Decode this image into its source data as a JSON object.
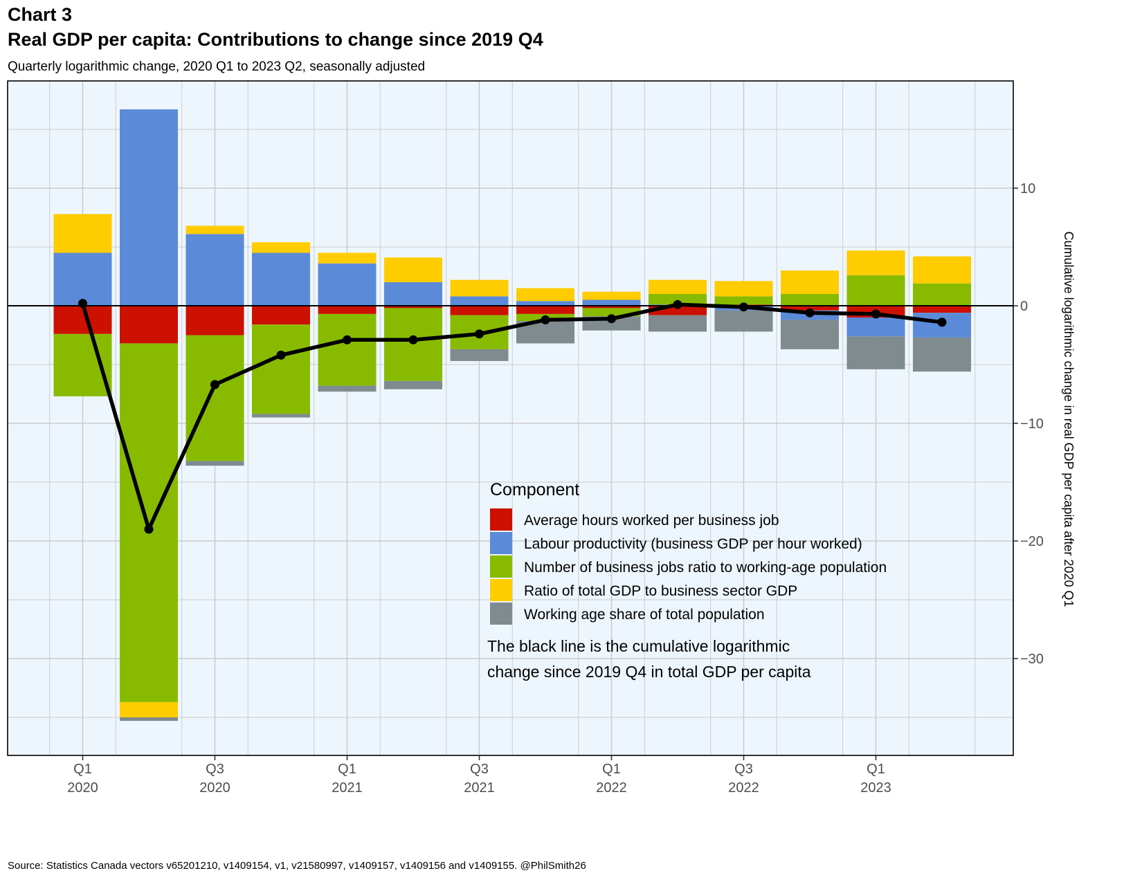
{
  "header": {
    "label": "Chart 3",
    "title": "Real GDP per capita: Contributions to change since 2019 Q4",
    "subtitle": "Quarterly logarithmic change, 2020 Q1 to 2023 Q2, seasonally adjusted"
  },
  "source": "Source: Statistics Canada vectors v65201210, v1409154, v1, v21580997, v1409157, v1409156 and v1409155. @PhilSmith26",
  "colors": {
    "panel_background": "#eef6fd",
    "grid": "#cccccc",
    "hours": "#cc1100",
    "productivity": "#5b8ad9",
    "jobs": "#88bb00",
    "gdp_ratio": "#ffcc00",
    "working_age": "#7f8b8f",
    "line": "#000000"
  },
  "chart_data": {
    "type": "bar",
    "stacked": true,
    "title": "Real GDP per capita: Contributions to change since 2019 Q4",
    "subtitle": "Quarterly logarithmic change, 2020 Q1 to 2023 Q2, seasonally adjusted",
    "ylabel_right": "Cumulative logarithmic change in real GDP per capita after 2020 Q1",
    "y_axis_position": "right",
    "ylim": [
      -38.5,
      19
    ],
    "y_ticks": [
      10,
      0,
      -10,
      -20,
      -30
    ],
    "y_tick_labels": [
      "10",
      "0",
      "−10",
      "−20",
      "−30"
    ],
    "grid": true,
    "categories": [
      "2020 Q1",
      "2020 Q2",
      "2020 Q3",
      "2020 Q4",
      "2021 Q1",
      "2021 Q2",
      "2021 Q3",
      "2021 Q4",
      "2022 Q1",
      "2022 Q2",
      "2022 Q3",
      "2022 Q4",
      "2023 Q1",
      "2023 Q2"
    ],
    "x_tick_labels": [
      {
        "index": 0,
        "line1": "Q1",
        "line2": "2020"
      },
      {
        "index": 2,
        "line1": "Q3",
        "line2": "2020"
      },
      {
        "index": 4,
        "line1": "Q1",
        "line2": "2021"
      },
      {
        "index": 6,
        "line1": "Q3",
        "line2": "2021"
      },
      {
        "index": 8,
        "line1": "Q1",
        "line2": "2022"
      },
      {
        "index": 10,
        "line1": "Q3",
        "line2": "2022"
      },
      {
        "index": 12,
        "line1": "Q1",
        "line2": "2023"
      }
    ],
    "series": [
      {
        "name": "Average hours worked per business job",
        "key": "hours",
        "values": [
          -2.4,
          -3.2,
          -2.5,
          -1.6,
          -0.7,
          -0.2,
          -0.8,
          -0.7,
          -0.2,
          -0.8,
          0.1,
          -0.4,
          -1.0,
          -0.6
        ]
      },
      {
        "name": "Labour productivity (business GDP per hour worked)",
        "key": "productivity",
        "values": [
          4.5,
          16.7,
          6.1,
          4.5,
          3.6,
          2.0,
          0.8,
          0.4,
          0.5,
          0.1,
          -0.4,
          -0.8,
          -1.6,
          -2.1
        ]
      },
      {
        "name": "Number of business jobs ratio to working-age population",
        "key": "jobs",
        "values": [
          -5.3,
          -30.5,
          -10.7,
          -7.6,
          -6.1,
          -6.2,
          -2.9,
          -0.6,
          -0.7,
          0.9,
          0.7,
          1.0,
          2.6,
          1.9
        ]
      },
      {
        "name": "Ratio of total GDP to business sector GDP",
        "key": "gdp_ratio",
        "values": [
          3.3,
          -1.3,
          0.7,
          0.9,
          0.9,
          2.1,
          1.4,
          1.1,
          0.7,
          1.2,
          1.3,
          2.0,
          2.1,
          2.3
        ]
      },
      {
        "name": "Working age share of total population",
        "key": "working_age",
        "values": [
          0.0,
          -0.3,
          -0.4,
          -0.3,
          -0.5,
          -0.7,
          -1.0,
          -1.9,
          -1.2,
          -1.4,
          -1.8,
          -2.5,
          -2.8,
          -2.9
        ]
      }
    ],
    "line": {
      "values": [
        0.2,
        -19.0,
        -6.7,
        -4.2,
        -2.9,
        -2.9,
        -2.4,
        -1.2,
        -1.1,
        0.1,
        -0.1,
        -0.6,
        -0.7,
        -1.4
      ]
    },
    "legend": {
      "title": "Component",
      "placement": "inside-bottom-right",
      "note_lines": [
        "The black line is the cumulative logarithmic",
        "change since 2019 Q4 in total GDP per capita"
      ]
    }
  }
}
